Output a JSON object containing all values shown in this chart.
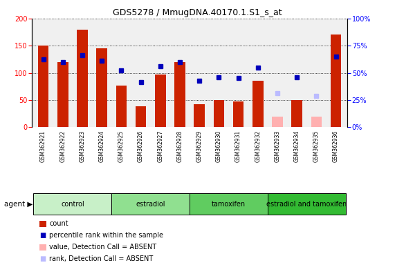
{
  "title": "GDS5278 / MmugDNA.40170.1.S1_s_at",
  "samples": [
    "GSM362921",
    "GSM362922",
    "GSM362923",
    "GSM362924",
    "GSM362925",
    "GSM362926",
    "GSM362927",
    "GSM362928",
    "GSM362929",
    "GSM362930",
    "GSM362931",
    "GSM362932",
    "GSM362933",
    "GSM362934",
    "GSM362935",
    "GSM362936"
  ],
  "count_values": [
    150,
    120,
    180,
    145,
    77,
    38,
    97,
    120,
    42,
    50,
    47,
    85,
    0,
    50,
    0,
    170
  ],
  "count_absent": [
    false,
    false,
    false,
    false,
    false,
    false,
    false,
    false,
    false,
    false,
    false,
    false,
    true,
    false,
    true,
    false
  ],
  "count_absent_values": [
    0,
    0,
    0,
    0,
    0,
    0,
    0,
    0,
    0,
    0,
    0,
    0,
    20,
    0,
    20,
    0
  ],
  "rank_values": [
    125,
    120,
    132,
    122,
    105,
    83,
    112,
    120,
    86,
    92,
    90,
    110,
    0,
    92,
    0,
    130
  ],
  "rank_absent": [
    false,
    false,
    false,
    false,
    false,
    false,
    false,
    false,
    false,
    false,
    false,
    false,
    true,
    false,
    true,
    false
  ],
  "rank_absent_values": [
    0,
    0,
    0,
    0,
    0,
    0,
    0,
    0,
    0,
    0,
    0,
    0,
    63,
    0,
    58,
    0
  ],
  "groups": [
    {
      "label": "control",
      "start": 0,
      "end": 4,
      "color": "#c8f0c8"
    },
    {
      "label": "estradiol",
      "start": 4,
      "end": 8,
      "color": "#90e090"
    },
    {
      "label": "tamoxifen",
      "start": 8,
      "end": 12,
      "color": "#60cc60"
    },
    {
      "label": "estradiol and tamoxifen",
      "start": 12,
      "end": 16,
      "color": "#33bb33"
    }
  ],
  "ylim_left": [
    0,
    200
  ],
  "ylim_right": [
    0,
    100
  ],
  "yticks_left": [
    0,
    50,
    100,
    150,
    200
  ],
  "yticks_right": [
    0,
    25,
    50,
    75,
    100
  ],
  "bar_color": "#cc2200",
  "bar_absent_color": "#ffb0b0",
  "dot_color": "#0000bb",
  "dot_absent_color": "#bbbbff",
  "bg_color": "#ffffff",
  "plot_bg_color": "#f0f0f0",
  "xtick_bg_color": "#d0d0d0"
}
